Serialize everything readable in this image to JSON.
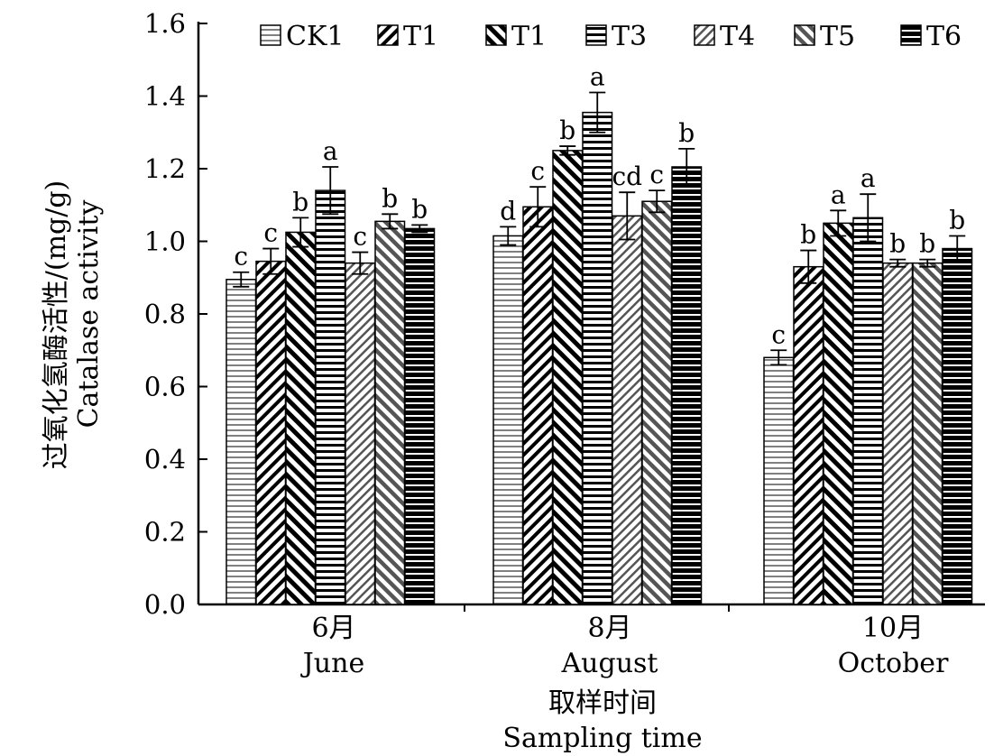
{
  "chart_data": {
    "type": "bar",
    "ylabel_cn": "过氧化氢酶活性/(mg/g)",
    "ylabel_en": "Catalase activity",
    "xlabel_cn": "取样时间",
    "xlabel_en": "Sampling time",
    "ylim": [
      0,
      1.6
    ],
    "yticks": [
      "0.0",
      "0.2",
      "0.4",
      "0.6",
      "0.8",
      "1.0",
      "1.2",
      "1.4",
      "1.6"
    ],
    "categories": [
      {
        "cn": "6月",
        "en": "June"
      },
      {
        "cn": "8月",
        "en": "August"
      },
      {
        "cn": "10月",
        "en": "October"
      }
    ],
    "legend_placement": "top",
    "series": [
      {
        "name": "CK1",
        "pattern": "hlines-thin",
        "values": [
          0.895,
          1.015,
          0.68
        ],
        "errors": [
          0.02,
          0.025,
          0.02
        ],
        "labels": [
          "c",
          "d",
          "c"
        ]
      },
      {
        "name": "T1",
        "pattern": "diag-back",
        "values": [
          0.945,
          1.095,
          0.93
        ],
        "errors": [
          0.035,
          0.055,
          0.045
        ],
        "labels": [
          "c",
          "c",
          "b"
        ]
      },
      {
        "name": "T1",
        "pattern": "diag-fwd",
        "values": [
          1.025,
          1.25,
          1.05
        ],
        "errors": [
          0.04,
          0.012,
          0.035
        ],
        "labels": [
          "b",
          "b",
          "a"
        ]
      },
      {
        "name": "T3",
        "pattern": "hlines-mid",
        "values": [
          1.14,
          1.355,
          1.065
        ],
        "errors": [
          0.065,
          0.055,
          0.065
        ],
        "labels": [
          "a",
          "a",
          "a"
        ]
      },
      {
        "name": "T4",
        "pattern": "diag-back-light",
        "values": [
          0.94,
          1.07,
          0.94
        ],
        "errors": [
          0.03,
          0.065,
          0.01
        ],
        "labels": [
          "c",
          "cd",
          "b"
        ]
      },
      {
        "name": "T5",
        "pattern": "diag-fwd-gray",
        "values": [
          1.055,
          1.11,
          0.94
        ],
        "errors": [
          0.02,
          0.03,
          0.01
        ],
        "labels": [
          "b",
          "c",
          "b"
        ]
      },
      {
        "name": "T6",
        "pattern": "hlines-heavy",
        "values": [
          1.035,
          1.205,
          0.98
        ],
        "errors": [
          0.01,
          0.05,
          0.035
        ],
        "labels": [
          "b",
          "b",
          "b"
        ]
      }
    ]
  }
}
